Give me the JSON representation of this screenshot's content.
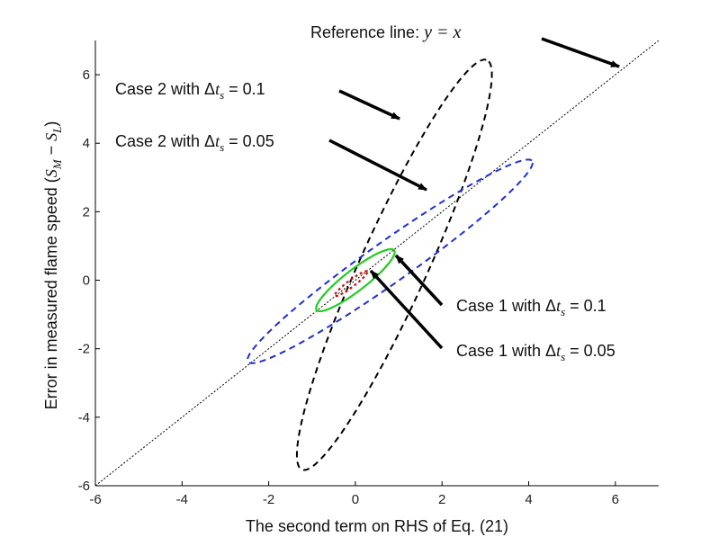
{
  "chart_data": {
    "type": "line",
    "xlabel": "The second term on RHS of Eq. (21)",
    "ylabel": {
      "prefix": "Error in measured flame speed (",
      "s": "S",
      "m": "M",
      "minus": " − ",
      "l": "L",
      "suffix": ")"
    },
    "xlim": [
      -6,
      7
    ],
    "ylim": [
      -6,
      7
    ],
    "xticks": [
      "-6",
      "-4",
      "-2",
      "0",
      "2",
      "4",
      "6"
    ],
    "yticks": [
      "-6",
      "-4",
      "-2",
      "0",
      "2",
      "4",
      "6"
    ],
    "grid": false,
    "reference_line": {
      "slope": 1,
      "intercept": 0,
      "color": "#000000"
    },
    "series": [
      {
        "center": [
          0.9,
          0.45
        ],
        "a": 6.35,
        "b": 0.8,
        "angle_deg": 70.5,
        "color": "#000000"
      },
      {
        "center": [
          0.8,
          0.55
        ],
        "a": 4.4,
        "b": 0.55,
        "angle_deg": 42,
        "color": "#1f2fd0"
      },
      {
        "center": [
          0.0,
          0.0
        ],
        "a": 1.25,
        "b": 0.28,
        "angle_deg": 45,
        "color": "#22cc22"
      },
      {
        "center": [
          -0.1,
          -0.1
        ],
        "a": 0.52,
        "b": 0.09,
        "angle_deg": 44,
        "color": "#cc1111"
      }
    ],
    "annotations": [
      {
        "pre": "Reference line: ",
        "math": "y = x",
        "post": ""
      },
      {
        "pre": "Case 2 with ",
        "delta": "Δ",
        "t": "t",
        "sub": "s",
        "post": " = 0.1"
      },
      {
        "pre": "Case 2 with ",
        "delta": "Δ",
        "t": "t",
        "sub": "s",
        "post": " = 0.05"
      },
      {
        "pre": "Case 1 with ",
        "delta": "Δ",
        "t": "t",
        "sub": "s",
        "post": " = 0.1"
      },
      {
        "pre": "Case 1 with ",
        "delta": "Δ",
        "t": "t",
        "sub": "s",
        "post": " = 0.05"
      }
    ]
  }
}
